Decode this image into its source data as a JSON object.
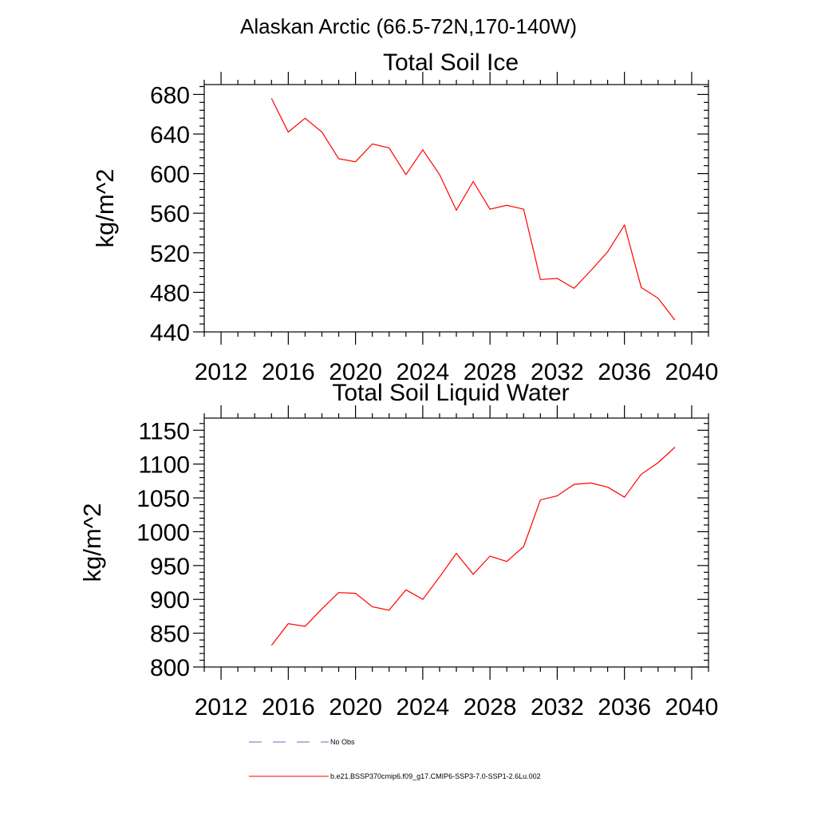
{
  "figure_title": "Alaskan Arctic (66.5-72N,170-140W)",
  "chart_data": [
    {
      "type": "line",
      "title": "Total Soil Ice",
      "xlabel": "",
      "ylabel": "kg/m^2",
      "xlim": [
        2011,
        2041
      ],
      "ylim": [
        440,
        690
      ],
      "xticks": [
        2012,
        2016,
        2020,
        2024,
        2028,
        2032,
        2036,
        2040
      ],
      "yticks": [
        440,
        480,
        520,
        560,
        600,
        640,
        680
      ],
      "grid": false,
      "series": [
        {
          "name": "b.e21.BSSP370cmip6.f09_g17.CMIP6-SSP3-7.0-SSP1-2.6Lu.002",
          "color": "#ff0000",
          "x": [
            2015,
            2016,
            2017,
            2018,
            2019,
            2020,
            2021,
            2022,
            2023,
            2024,
            2025,
            2026,
            2027,
            2028,
            2029,
            2030,
            2031,
            2032,
            2033,
            2034,
            2035,
            2036,
            2037,
            2038,
            2039
          ],
          "y": [
            676,
            642,
            656,
            642,
            615,
            612,
            630,
            626,
            599,
            624,
            599,
            563,
            592,
            564,
            568,
            564,
            493,
            494,
            484,
            502,
            521,
            548,
            485,
            474,
            452
          ]
        }
      ]
    },
    {
      "type": "line",
      "title": "Total Soil Liquid Water",
      "xlabel": "",
      "ylabel": "kg/m^2",
      "xlim": [
        2011,
        2041
      ],
      "ylim": [
        800,
        1168
      ],
      "xticks": [
        2012,
        2016,
        2020,
        2024,
        2028,
        2032,
        2036,
        2040
      ],
      "yticks": [
        800,
        850,
        900,
        950,
        1000,
        1050,
        1100,
        1150
      ],
      "grid": false,
      "series": [
        {
          "name": "b.e21.BSSP370cmip6.f09_g17.CMIP6-SSP3-7.0-SSP1-2.6Lu.002",
          "color": "#ff0000",
          "x": [
            2015,
            2016,
            2017,
            2018,
            2019,
            2020,
            2021,
            2022,
            2023,
            2024,
            2025,
            2026,
            2027,
            2028,
            2029,
            2030,
            2031,
            2032,
            2033,
            2034,
            2035,
            2036,
            2037,
            2038,
            2039
          ],
          "y": [
            832,
            864,
            860,
            886,
            910,
            909,
            889,
            884,
            914,
            900,
            933,
            968,
            937,
            964,
            956,
            978,
            1047,
            1053,
            1070,
            1072,
            1066,
            1051,
            1085,
            1102,
            1125
          ]
        }
      ]
    }
  ],
  "legend": [
    {
      "label": "No Obs",
      "color": "#5b6fbf",
      "style": "dashed"
    },
    {
      "label": "b.e21.BSSP370cmip6.f09_g17.CMIP6-SSP3-7.0-SSP1-2.6Lu.002",
      "color": "#ff0000",
      "style": "solid"
    }
  ]
}
